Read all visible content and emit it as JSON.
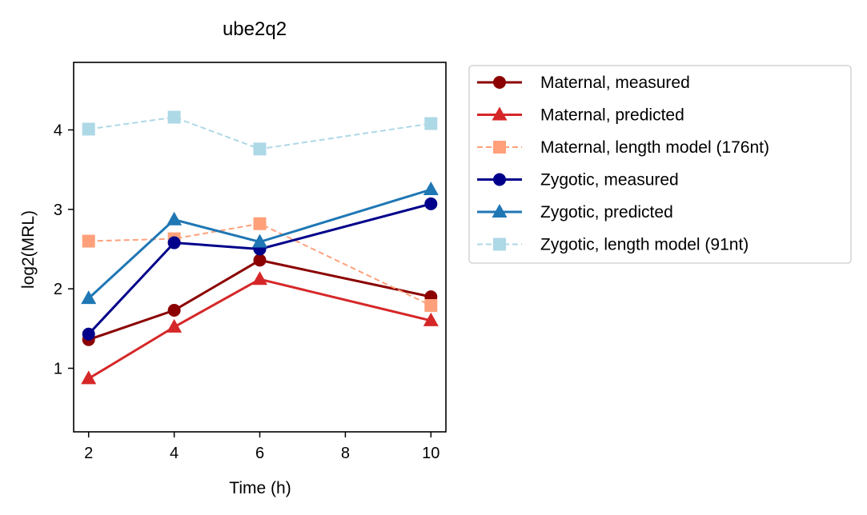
{
  "chart_data": {
    "type": "line",
    "title": "ube2q2",
    "xlabel": "Time (h)",
    "ylabel": "log2(MRL)",
    "x": [
      2,
      4,
      6,
      10
    ],
    "xlim": [
      1.65,
      10.35
    ],
    "ylim": [
      0.2,
      4.85
    ],
    "xticks": [
      2,
      4,
      6,
      8,
      10
    ],
    "yticks": [
      1,
      2,
      3,
      4
    ],
    "grid": false,
    "legend_position": "outside-right-top",
    "series": [
      {
        "name": "Maternal, measured",
        "values": [
          1.36,
          1.73,
          2.36,
          1.9
        ],
        "color": "#8b0000",
        "marker": "circle",
        "dash": "solid"
      },
      {
        "name": "Maternal, predicted",
        "values": [
          0.87,
          1.52,
          2.12,
          1.6
        ],
        "color": "#d62728",
        "marker": "triangle",
        "dash": "solid"
      },
      {
        "name": "Maternal, length model (176nt)",
        "values": [
          2.6,
          2.63,
          2.82,
          1.79
        ],
        "color": "#ffa07a",
        "marker": "square",
        "dash": "dashed"
      },
      {
        "name": "Zygotic, measured",
        "values": [
          1.43,
          2.58,
          2.5,
          3.07
        ],
        "color": "#00008b",
        "marker": "circle",
        "dash": "solid"
      },
      {
        "name": "Zygotic, predicted",
        "values": [
          1.88,
          2.87,
          2.59,
          3.25
        ],
        "color": "#1f77b4",
        "marker": "triangle",
        "dash": "solid"
      },
      {
        "name": "Zygotic, length model (91nt)",
        "values": [
          4.01,
          4.16,
          3.76,
          4.08
        ],
        "color": "#add8e6",
        "marker": "square",
        "dash": "dashed"
      }
    ]
  }
}
